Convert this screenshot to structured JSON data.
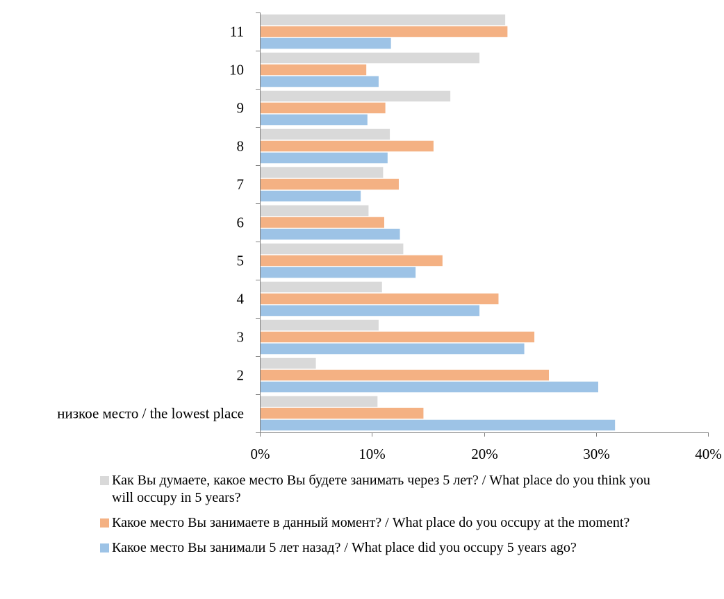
{
  "chart_data": {
    "type": "bar",
    "orientation": "horizontal",
    "categories": [
      "низкое место / the lowest place",
      "2",
      "3",
      "4",
      "5",
      "6",
      "7",
      "8",
      "9",
      "10",
      "11"
    ],
    "series": [
      {
        "name": "Как Вы думаете, какое место Вы будете занимать через 5 лет? / What place do you think you will occupy in 5 years?",
        "color": "#d9d9d9",
        "values": [
          10.5,
          5.0,
          10.6,
          10.9,
          12.8,
          9.7,
          11.0,
          11.6,
          17.0,
          19.6,
          21.9
        ]
      },
      {
        "name": "Какое место Вы занимаете в данный момент? / What place do you occupy at the moment?",
        "color": "#f4b183",
        "values": [
          14.6,
          25.8,
          24.5,
          21.3,
          16.3,
          11.1,
          12.4,
          15.5,
          11.2,
          9.5,
          22.1
        ]
      },
      {
        "name": "Какое место Вы занимали 5 лет назад? / What place did you occupy 5 years ago?",
        "color": "#9dc3e6",
        "values": [
          31.7,
          30.2,
          23.6,
          19.6,
          13.9,
          12.5,
          9.0,
          11.4,
          9.6,
          10.6,
          11.7
        ]
      }
    ],
    "xlim": [
      0,
      40
    ],
    "xticks": [
      "0%",
      "10%",
      "20%",
      "30%",
      "40%"
    ],
    "legend_position": "bottom",
    "grid": false,
    "title": "",
    "xlabel": "",
    "ylabel": ""
  }
}
